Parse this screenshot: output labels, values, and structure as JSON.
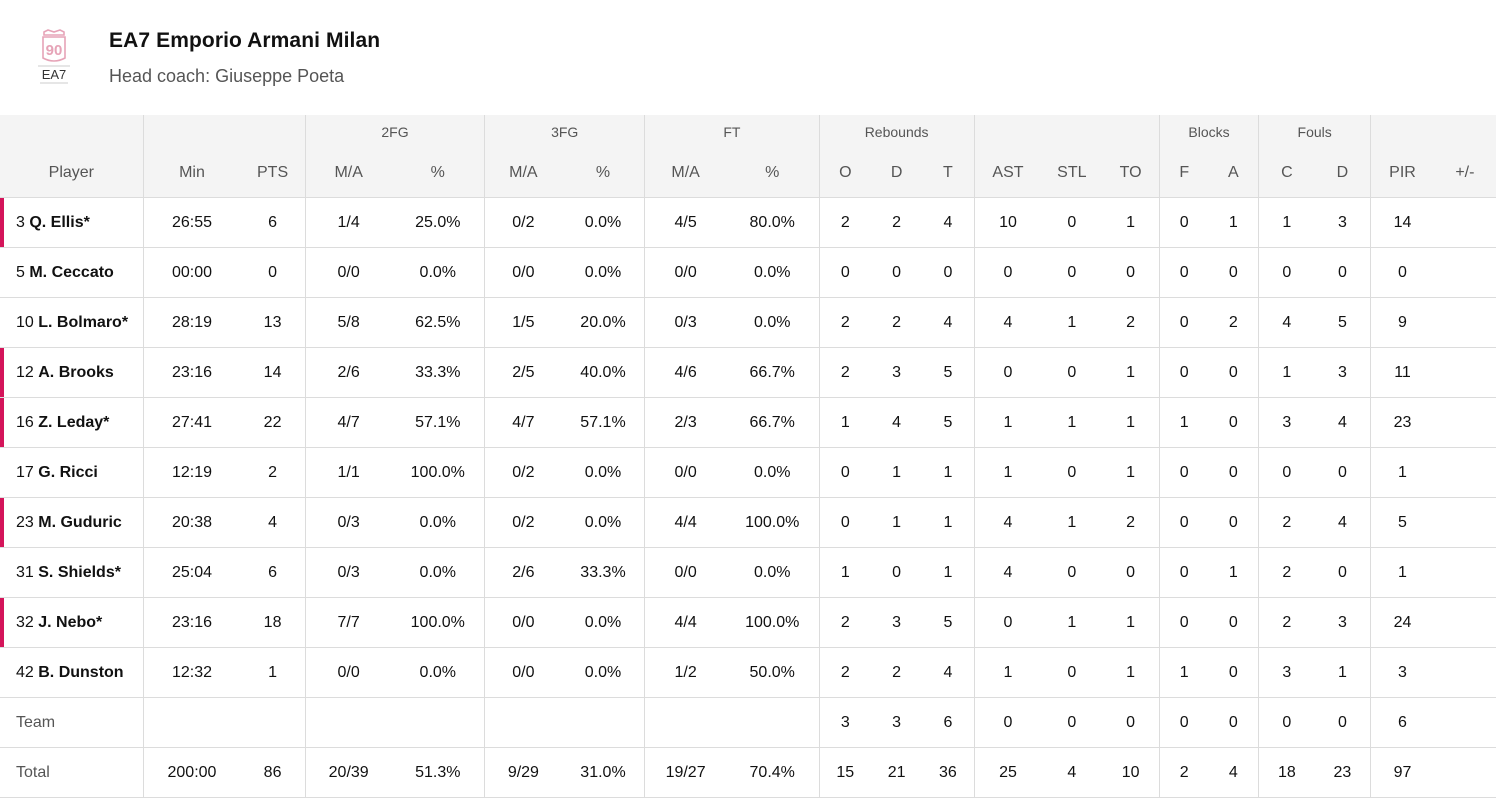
{
  "team": {
    "name": "EA7 Emporio Armani Milan",
    "coach": "Head coach: Giuseppe Poeta",
    "logo_icon": "ea7-90-logo-icon",
    "logo_text": "EA7",
    "logo_number": "90",
    "accent_color": "#d4145a"
  },
  "groups": {
    "fg2": "2FG",
    "fg3": "3FG",
    "ft": "FT",
    "reb": "Rebounds",
    "blocks": "Blocks",
    "fouls": "Fouls"
  },
  "columns": [
    "Player",
    "Min",
    "PTS",
    "M/A",
    "%",
    "M/A",
    "%",
    "M/A",
    "%",
    "O",
    "D",
    "T",
    "AST",
    "STL",
    "TO",
    "F",
    "A",
    "C",
    "D",
    "PIR",
    "+/-"
  ],
  "players": [
    {
      "num": "3",
      "name": "Q. Ellis*",
      "starter": true,
      "stats": [
        "26:55",
        "6",
        "1/4",
        "25.0%",
        "0/2",
        "0.0%",
        "4/5",
        "80.0%",
        "2",
        "2",
        "4",
        "10",
        "0",
        "1",
        "0",
        "1",
        "1",
        "3",
        "14",
        ""
      ]
    },
    {
      "num": "5",
      "name": "M. Ceccato",
      "starter": false,
      "stats": [
        "00:00",
        "0",
        "0/0",
        "0.0%",
        "0/0",
        "0.0%",
        "0/0",
        "0.0%",
        "0",
        "0",
        "0",
        "0",
        "0",
        "0",
        "0",
        "0",
        "0",
        "0",
        "0",
        ""
      ]
    },
    {
      "num": "10",
      "name": "L. Bolmaro*",
      "starter": false,
      "stats": [
        "28:19",
        "13",
        "5/8",
        "62.5%",
        "1/5",
        "20.0%",
        "0/3",
        "0.0%",
        "2",
        "2",
        "4",
        "4",
        "1",
        "2",
        "0",
        "2",
        "4",
        "5",
        "9",
        ""
      ]
    },
    {
      "num": "12",
      "name": "A. Brooks",
      "starter": true,
      "stats": [
        "23:16",
        "14",
        "2/6",
        "33.3%",
        "2/5",
        "40.0%",
        "4/6",
        "66.7%",
        "2",
        "3",
        "5",
        "0",
        "0",
        "1",
        "0",
        "0",
        "1",
        "3",
        "11",
        ""
      ]
    },
    {
      "num": "16",
      "name": "Z. Leday*",
      "starter": true,
      "stats": [
        "27:41",
        "22",
        "4/7",
        "57.1%",
        "4/7",
        "57.1%",
        "2/3",
        "66.7%",
        "1",
        "4",
        "5",
        "1",
        "1",
        "1",
        "1",
        "0",
        "3",
        "4",
        "23",
        ""
      ]
    },
    {
      "num": "17",
      "name": "G. Ricci",
      "starter": false,
      "stats": [
        "12:19",
        "2",
        "1/1",
        "100.0%",
        "0/2",
        "0.0%",
        "0/0",
        "0.0%",
        "0",
        "1",
        "1",
        "1",
        "0",
        "1",
        "0",
        "0",
        "0",
        "0",
        "1",
        ""
      ]
    },
    {
      "num": "23",
      "name": "M. Guduric",
      "starter": true,
      "stats": [
        "20:38",
        "4",
        "0/3",
        "0.0%",
        "0/2",
        "0.0%",
        "4/4",
        "100.0%",
        "0",
        "1",
        "1",
        "4",
        "1",
        "2",
        "0",
        "0",
        "2",
        "4",
        "5",
        ""
      ]
    },
    {
      "num": "31",
      "name": "S. Shields*",
      "starter": false,
      "stats": [
        "25:04",
        "6",
        "0/3",
        "0.0%",
        "2/6",
        "33.3%",
        "0/0",
        "0.0%",
        "1",
        "0",
        "1",
        "4",
        "0",
        "0",
        "0",
        "1",
        "2",
        "0",
        "1",
        ""
      ]
    },
    {
      "num": "32",
      "name": "J. Nebo*",
      "starter": true,
      "stats": [
        "23:16",
        "18",
        "7/7",
        "100.0%",
        "0/0",
        "0.0%",
        "4/4",
        "100.0%",
        "2",
        "3",
        "5",
        "0",
        "1",
        "1",
        "0",
        "0",
        "2",
        "3",
        "24",
        ""
      ]
    },
    {
      "num": "42",
      "name": "B. Dunston",
      "starter": false,
      "stats": [
        "12:32",
        "1",
        "0/0",
        "0.0%",
        "0/0",
        "0.0%",
        "1/2",
        "50.0%",
        "2",
        "2",
        "4",
        "1",
        "0",
        "1",
        "1",
        "0",
        "3",
        "1",
        "3",
        ""
      ]
    }
  ],
  "team_row": {
    "label": "Team",
    "stats": [
      "",
      "",
      "",
      "",
      "",
      "",
      "",
      "",
      "3",
      "3",
      "6",
      "0",
      "0",
      "0",
      "0",
      "0",
      "0",
      "0",
      "6",
      ""
    ]
  },
  "total_row": {
    "label": "Total",
    "stats": [
      "200:00",
      "86",
      "20/39",
      "51.3%",
      "9/29",
      "31.0%",
      "19/27",
      "70.4%",
      "15",
      "21",
      "36",
      "25",
      "4",
      "10",
      "2",
      "4",
      "18",
      "23",
      "97",
      ""
    ]
  }
}
